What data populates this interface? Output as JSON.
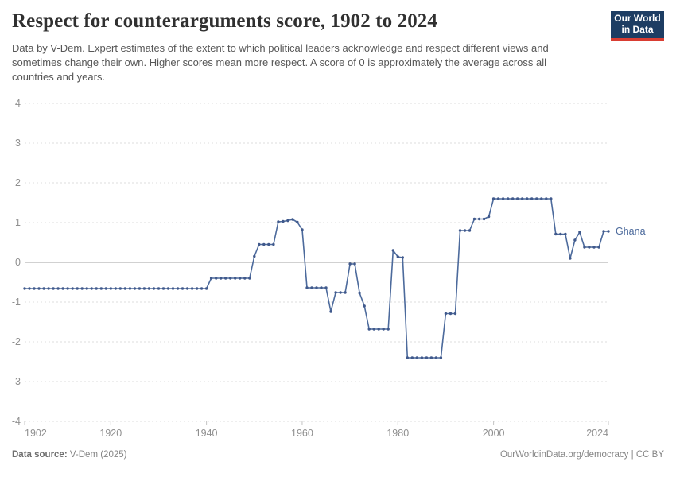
{
  "header": {
    "title": "Respect for counterarguments score, 1902 to 2024",
    "subtitle": "Data by V-Dem. Expert estimates of the extent to which political leaders acknowledge and respect different views and sometimes change their own. Higher scores mean more respect. A score of 0 is approximately the average across all countries and years.",
    "logo": {
      "line1": "Our World",
      "line2": "in Data"
    }
  },
  "chart_data": {
    "type": "line",
    "title": "Respect for counterarguments score, 1902 to 2024",
    "xlabel": "",
    "ylabel": "",
    "xlim": [
      1902,
      2024
    ],
    "ylim": [
      -4,
      4
    ],
    "yticks": [
      4,
      3,
      2,
      1,
      0,
      -1,
      -2,
      -3,
      -4
    ],
    "xticks": [
      1902,
      1920,
      1940,
      1960,
      1980,
      2000,
      2024
    ],
    "grid": "horizontal-dashed",
    "zero_line": true,
    "legend_position": "end-of-line-label",
    "entity_label": "Ghana",
    "series": [
      {
        "name": "Ghana",
        "points": [
          [
            1902,
            -0.66
          ],
          [
            1903,
            -0.66
          ],
          [
            1904,
            -0.66
          ],
          [
            1905,
            -0.66
          ],
          [
            1906,
            -0.66
          ],
          [
            1907,
            -0.66
          ],
          [
            1908,
            -0.66
          ],
          [
            1909,
            -0.66
          ],
          [
            1910,
            -0.66
          ],
          [
            1911,
            -0.66
          ],
          [
            1912,
            -0.66
          ],
          [
            1913,
            -0.66
          ],
          [
            1914,
            -0.66
          ],
          [
            1915,
            -0.66
          ],
          [
            1916,
            -0.66
          ],
          [
            1917,
            -0.66
          ],
          [
            1918,
            -0.66
          ],
          [
            1919,
            -0.66
          ],
          [
            1920,
            -0.66
          ],
          [
            1921,
            -0.66
          ],
          [
            1922,
            -0.66
          ],
          [
            1923,
            -0.66
          ],
          [
            1924,
            -0.66
          ],
          [
            1925,
            -0.66
          ],
          [
            1926,
            -0.66
          ],
          [
            1927,
            -0.66
          ],
          [
            1928,
            -0.66
          ],
          [
            1929,
            -0.66
          ],
          [
            1930,
            -0.66
          ],
          [
            1931,
            -0.66
          ],
          [
            1932,
            -0.66
          ],
          [
            1933,
            -0.66
          ],
          [
            1934,
            -0.66
          ],
          [
            1935,
            -0.66
          ],
          [
            1936,
            -0.66
          ],
          [
            1937,
            -0.66
          ],
          [
            1938,
            -0.66
          ],
          [
            1939,
            -0.66
          ],
          [
            1940,
            -0.66
          ],
          [
            1941,
            -0.4
          ],
          [
            1942,
            -0.4
          ],
          [
            1943,
            -0.4
          ],
          [
            1944,
            -0.4
          ],
          [
            1945,
            -0.4
          ],
          [
            1946,
            -0.4
          ],
          [
            1947,
            -0.4
          ],
          [
            1948,
            -0.4
          ],
          [
            1949,
            -0.4
          ],
          [
            1950,
            0.15
          ],
          [
            1951,
            0.45
          ],
          [
            1952,
            0.45
          ],
          [
            1953,
            0.45
          ],
          [
            1954,
            0.45
          ],
          [
            1955,
            1.02
          ],
          [
            1956,
            1.03
          ],
          [
            1957,
            1.05
          ],
          [
            1958,
            1.08
          ],
          [
            1959,
            1.01
          ],
          [
            1960,
            0.82
          ],
          [
            1961,
            -0.64
          ],
          [
            1962,
            -0.64
          ],
          [
            1963,
            -0.64
          ],
          [
            1964,
            -0.64
          ],
          [
            1965,
            -0.64
          ],
          [
            1966,
            -1.24
          ],
          [
            1967,
            -0.76
          ],
          [
            1968,
            -0.76
          ],
          [
            1969,
            -0.76
          ],
          [
            1970,
            -0.04
          ],
          [
            1971,
            -0.04
          ],
          [
            1972,
            -0.77
          ],
          [
            1973,
            -1.1
          ],
          [
            1974,
            -1.68
          ],
          [
            1975,
            -1.68
          ],
          [
            1976,
            -1.68
          ],
          [
            1977,
            -1.68
          ],
          [
            1978,
            -1.68
          ],
          [
            1979,
            0.3
          ],
          [
            1980,
            0.14
          ],
          [
            1981,
            0.12
          ],
          [
            1982,
            -2.4
          ],
          [
            1983,
            -2.4
          ],
          [
            1984,
            -2.4
          ],
          [
            1985,
            -2.4
          ],
          [
            1986,
            -2.4
          ],
          [
            1987,
            -2.4
          ],
          [
            1988,
            -2.4
          ],
          [
            1989,
            -2.4
          ],
          [
            1990,
            -1.29
          ],
          [
            1991,
            -1.29
          ],
          [
            1992,
            -1.29
          ],
          [
            1993,
            0.8
          ],
          [
            1994,
            0.8
          ],
          [
            1995,
            0.8
          ],
          [
            1996,
            1.09
          ],
          [
            1997,
            1.09
          ],
          [
            1998,
            1.09
          ],
          [
            1999,
            1.15
          ],
          [
            2000,
            1.6
          ],
          [
            2001,
            1.6
          ],
          [
            2002,
            1.6
          ],
          [
            2003,
            1.6
          ],
          [
            2004,
            1.6
          ],
          [
            2005,
            1.6
          ],
          [
            2006,
            1.6
          ],
          [
            2007,
            1.6
          ],
          [
            2008,
            1.6
          ],
          [
            2009,
            1.6
          ],
          [
            2010,
            1.6
          ],
          [
            2011,
            1.6
          ],
          [
            2012,
            1.6
          ],
          [
            2013,
            0.71
          ],
          [
            2014,
            0.71
          ],
          [
            2015,
            0.71
          ],
          [
            2016,
            0.1
          ],
          [
            2017,
            0.56
          ],
          [
            2018,
            0.76
          ],
          [
            2019,
            0.38
          ],
          [
            2020,
            0.38
          ],
          [
            2021,
            0.38
          ],
          [
            2022,
            0.38
          ],
          [
            2023,
            0.78
          ],
          [
            2024,
            0.78
          ]
        ]
      }
    ]
  },
  "footer": {
    "source_label": "Data source:",
    "source_value": "V-Dem (2025)",
    "link_text": "OurWorldinData.org/democracy",
    "separator": "|",
    "license_text": "CC BY"
  },
  "colors": {
    "line": "#4c6a9c",
    "dot": "#40598c",
    "entity_label": "#4c6a9c",
    "grid": "#dcdcdc",
    "zero_line": "#a3a3a3",
    "tick": "#c4c4c4",
    "axis_text": "#8f8f8f",
    "logo_bg": "#1d3d63",
    "logo_accent": "#d93d32"
  }
}
